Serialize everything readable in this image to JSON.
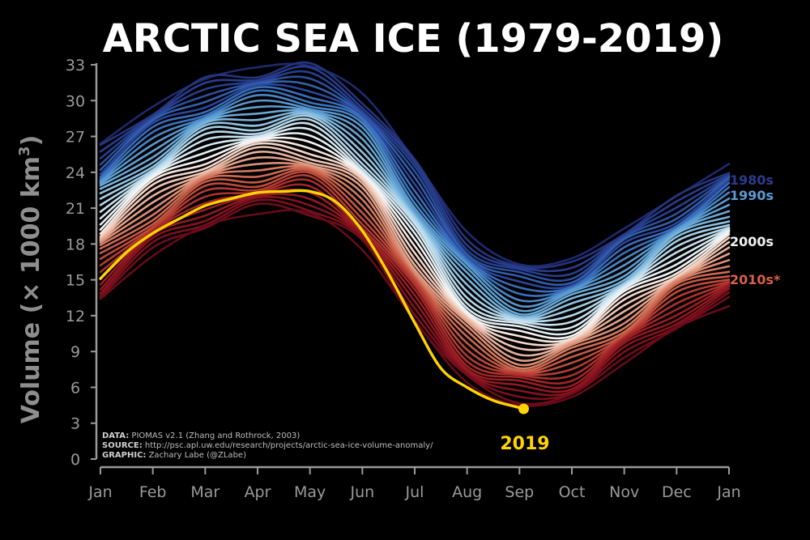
{
  "chart_data": {
    "type": "line",
    "title": "ARCTIC SEA ICE (1979-2019)",
    "ylabel_prefix": "Volume (",
    "ylabel_times": "×",
    "ylabel_number": " 1000 km",
    "ylabel_sup": "3",
    "ylabel_suffix": ")",
    "ylim": [
      0,
      33
    ],
    "yticks": [
      0,
      3,
      6,
      9,
      12,
      15,
      18,
      21,
      24,
      27,
      30,
      33
    ],
    "x_months": [
      "Jan",
      "Feb",
      "Mar",
      "Apr",
      "May",
      "Jun",
      "Jul",
      "Aug",
      "Sep",
      "Oct",
      "Nov",
      "Dec",
      "Jan"
    ],
    "grid": false,
    "legend_placement": "right",
    "legend": [
      {
        "label": "1980s",
        "color": "#2a3c8f"
      },
      {
        "label": "1990s",
        "color": "#5b9bd5"
      },
      {
        "label": "2000s",
        "color": "#f2f2f2"
      },
      {
        "label": "2010s*",
        "color": "#d9604a"
      }
    ],
    "highlight": {
      "label": "2019",
      "color": "#ffd400"
    },
    "credits": [
      {
        "key": "DATA:",
        "text": " PIOMAS v2.1 (Zhang and Rothrock, 2003)"
      },
      {
        "key": "SOURCE:",
        "text": " http://psc.apl.uw.edu/research/projects/arctic-sea-ice-volume-anomaly/"
      },
      {
        "key": "GRAPHIC:",
        "text": " Zachary Labe (@ZLabe)"
      }
    ],
    "series_templates": {
      "month_positions": [
        0,
        1,
        2,
        3,
        4,
        5,
        6,
        7,
        8,
        9,
        10,
        11,
        12
      ],
      "year_1979": [
        26.4,
        29.5,
        31.8,
        32.8,
        32.9,
        30.6,
        25.0,
        19.0,
        16.3,
        16.8,
        19.3,
        22.0,
        24.7
      ],
      "year_2018": [
        13.4,
        17.0,
        19.5,
        20.5,
        20.6,
        17.5,
        11.6,
        6.4,
        4.5,
        5.2,
        8.0,
        11.0,
        12.8
      ]
    },
    "series": [
      {
        "year": 1979,
        "color": "#1d2a6e"
      },
      {
        "year": 1980,
        "color": "#24357d"
      },
      {
        "year": 1981,
        "color": "#2a3c8f"
      },
      {
        "year": 1982,
        "color": "#26408f"
      },
      {
        "year": 1983,
        "color": "#2d4fa0"
      },
      {
        "year": 1984,
        "color": "#3160ad"
      },
      {
        "year": 1985,
        "color": "#2d46a0"
      },
      {
        "year": 1986,
        "color": "#3a6ebc"
      },
      {
        "year": 1987,
        "color": "#3873c0"
      },
      {
        "year": 1988,
        "color": "#4a87c8"
      },
      {
        "year": 1989,
        "color": "#5b97d0"
      },
      {
        "year": 1990,
        "color": "#5da0d4"
      },
      {
        "year": 1991,
        "color": "#6aa9d8"
      },
      {
        "year": 1992,
        "color": "#7ab6de"
      },
      {
        "year": 1993,
        "color": "#8ec2e4"
      },
      {
        "year": 1994,
        "color": "#a4cfe8"
      },
      {
        "year": 1995,
        "color": "#b6d9ec"
      },
      {
        "year": 1996,
        "color": "#c8e2ef"
      },
      {
        "year": 1997,
        "color": "#d8eaf2"
      },
      {
        "year": 1998,
        "color": "#e6f0f4"
      },
      {
        "year": 1999,
        "color": "#f5f5f5"
      },
      {
        "year": 2000,
        "color": "#f6e7e0"
      },
      {
        "year": 2001,
        "color": "#f4d8cc"
      },
      {
        "year": 2002,
        "color": "#efc6b5"
      },
      {
        "year": 2003,
        "color": "#e9b39e"
      },
      {
        "year": 2004,
        "color": "#e3a189"
      },
      {
        "year": 2005,
        "color": "#dc8e74"
      },
      {
        "year": 2006,
        "color": "#d67c62"
      },
      {
        "year": 2007,
        "color": "#cf6a52"
      },
      {
        "year": 2008,
        "color": "#c75945"
      },
      {
        "year": 2009,
        "color": "#bf4a3b"
      },
      {
        "year": 2010,
        "color": "#b63c33"
      },
      {
        "year": 2011,
        "color": "#ad302c"
      },
      {
        "year": 2012,
        "color": "#a32527"
      },
      {
        "year": 2013,
        "color": "#9a1d24"
      },
      {
        "year": 2014,
        "color": "#911822"
      },
      {
        "year": 2015,
        "color": "#87131f"
      },
      {
        "year": 2016,
        "color": "#7d101d"
      },
      {
        "year": 2017,
        "color": "#720d1b"
      },
      {
        "year": 2018,
        "color": "#670a19"
      }
    ],
    "series_2019": {
      "name": "2019",
      "color": "#ffd400",
      "x": [
        0,
        0.5,
        1,
        1.5,
        2,
        2.5,
        3,
        3.5,
        4,
        4.5,
        5,
        5.5,
        6,
        6.5,
        7,
        7.5,
        8,
        8.08
      ],
      "values": [
        15.1,
        17.3,
        18.9,
        20.1,
        21.2,
        21.8,
        22.3,
        22.4,
        22.4,
        21.5,
        19.1,
        15.5,
        11.4,
        7.6,
        6.0,
        4.9,
        4.3,
        4.2
      ]
    }
  }
}
